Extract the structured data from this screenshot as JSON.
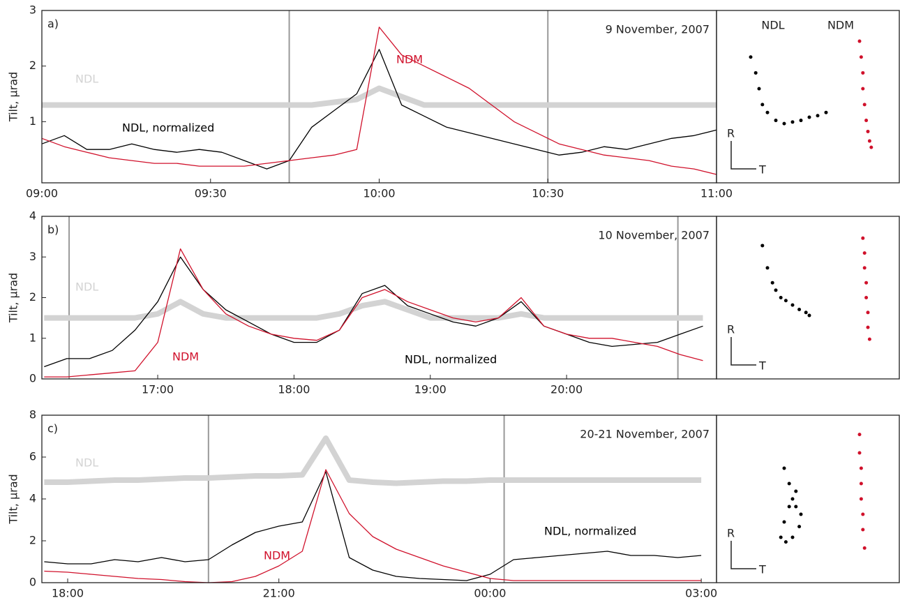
{
  "chart_data": [
    {
      "type": "line",
      "panel_label": "a)",
      "title": "9 November, 2007",
      "ylabel": "Tilt, µrad",
      "xlim": [
        540,
        660
      ],
      "ylim": [
        -0.1,
        3
      ],
      "yticks": [
        1,
        2,
        3
      ],
      "xticks": [
        {
          "value": 540,
          "label": "09:00"
        },
        {
          "value": 570,
          "label": "09:30"
        },
        {
          "value": 600,
          "label": "10:00"
        },
        {
          "value": 630,
          "label": "10:30"
        },
        {
          "value": 660,
          "label": "11:00"
        }
      ],
      "markers": [
        584,
        630
      ],
      "x": [
        540,
        544,
        548,
        552,
        556,
        560,
        564,
        568,
        572,
        576,
        580,
        584,
        588,
        592,
        596,
        600,
        604,
        608,
        612,
        616,
        620,
        624,
        628,
        632,
        636,
        640,
        644,
        648,
        652,
        656,
        660
      ],
      "series": [
        {
          "name": "NDL",
          "color": "#d3d3d3",
          "values": [
            1.3,
            1.3,
            1.3,
            1.3,
            1.3,
            1.3,
            1.3,
            1.3,
            1.3,
            1.3,
            1.3,
            1.3,
            1.3,
            1.35,
            1.4,
            1.6,
            1.45,
            1.3,
            1.3,
            1.3,
            1.3,
            1.3,
            1.3,
            1.3,
            1.3,
            1.3,
            1.3,
            1.3,
            1.3,
            1.3,
            1.3
          ]
        },
        {
          "name": "NDL, normalized",
          "color": "#000000",
          "values": [
            0.6,
            0.75,
            0.5,
            0.5,
            0.6,
            0.5,
            0.45,
            0.5,
            0.45,
            0.3,
            0.15,
            0.3,
            0.9,
            1.2,
            1.5,
            2.3,
            1.3,
            1.1,
            0.9,
            0.8,
            0.7,
            0.6,
            0.5,
            0.4,
            0.45,
            0.55,
            0.5,
            0.6,
            0.7,
            0.75,
            0.85
          ]
        },
        {
          "name": "NDM",
          "color": "#d0112b",
          "values": [
            0.7,
            0.55,
            0.45,
            0.35,
            0.3,
            0.25,
            0.25,
            0.2,
            0.2,
            0.2,
            0.25,
            0.3,
            0.35,
            0.4,
            0.5,
            2.7,
            2.2,
            2.0,
            1.8,
            1.6,
            1.3,
            1.0,
            0.8,
            0.6,
            0.5,
            0.4,
            0.35,
            0.3,
            0.2,
            0.15,
            0.05
          ]
        }
      ]
    },
    {
      "type": "scatter",
      "xlabel": "T",
      "ylabel": "R",
      "xlim": [
        0,
        100
      ],
      "ylim": [
        0,
        100
      ],
      "series": [
        {
          "name": "NDL",
          "color": "#000000",
          "x": [
            15,
            18,
            20,
            22,
            25,
            30,
            35,
            40,
            45,
            50,
            55,
            60
          ],
          "values": [
            75,
            65,
            55,
            45,
            40,
            35,
            33,
            34,
            35,
            37,
            38,
            40
          ]
        },
        {
          "name": "NDM",
          "color": "#d0112b",
          "x": [
            80,
            81,
            82,
            82,
            83,
            84,
            85,
            86,
            87
          ],
          "values": [
            85,
            75,
            65,
            55,
            45,
            35,
            28,
            22,
            18
          ]
        }
      ]
    },
    {
      "type": "line",
      "panel_label": "b)",
      "title": "10 November, 2007",
      "ylabel": "Tilt, µrad",
      "xlim": [
        969,
        1266
      ],
      "ylim": [
        0,
        4
      ],
      "yticks": [
        0,
        1,
        2,
        3,
        4
      ],
      "xticks": [
        {
          "value": 1020,
          "label": "17:00"
        },
        {
          "value": 1080,
          "label": "18:00"
        },
        {
          "value": 1140,
          "label": "19:00"
        },
        {
          "value": 1200,
          "label": "20:00"
        }
      ],
      "markers": [
        981,
        1249
      ],
      "x": [
        970,
        980,
        990,
        1000,
        1010,
        1020,
        1030,
        1040,
        1050,
        1060,
        1070,
        1080,
        1090,
        1100,
        1110,
        1120,
        1130,
        1140,
        1150,
        1160,
        1170,
        1180,
        1190,
        1200,
        1210,
        1220,
        1230,
        1240,
        1250,
        1260
      ],
      "series": [
        {
          "name": "NDL",
          "color": "#d3d3d3",
          "values": [
            1.5,
            1.5,
            1.5,
            1.5,
            1.5,
            1.6,
            1.9,
            1.6,
            1.5,
            1.5,
            1.5,
            1.5,
            1.5,
            1.6,
            1.8,
            1.9,
            1.7,
            1.5,
            1.5,
            1.5,
            1.5,
            1.6,
            1.5,
            1.5,
            1.5,
            1.5,
            1.5,
            1.5,
            1.5,
            1.5
          ]
        },
        {
          "name": "NDL, normalized",
          "color": "#000000",
          "values": [
            0.3,
            0.5,
            0.5,
            0.7,
            1.2,
            1.9,
            3.0,
            2.2,
            1.7,
            1.4,
            1.1,
            0.9,
            0.9,
            1.2,
            2.1,
            2.3,
            1.8,
            1.6,
            1.4,
            1.3,
            1.5,
            1.9,
            1.3,
            1.1,
            0.9,
            0.8,
            0.85,
            0.9,
            1.1,
            1.3
          ]
        },
        {
          "name": "NDM",
          "color": "#d0112b",
          "values": [
            0.05,
            0.05,
            0.1,
            0.15,
            0.2,
            0.9,
            3.2,
            2.2,
            1.6,
            1.3,
            1.1,
            1.0,
            0.95,
            1.2,
            2.0,
            2.2,
            1.9,
            1.7,
            1.5,
            1.4,
            1.5,
            2.0,
            1.3,
            1.1,
            1.0,
            1.0,
            0.9,
            0.8,
            0.6,
            0.45
          ]
        }
      ]
    },
    {
      "type": "scatter",
      "xlabel": "T",
      "ylabel": "R",
      "xlim": [
        0,
        100
      ],
      "ylim": [
        0,
        100
      ],
      "series": [
        {
          "color": "#000000",
          "x": [
            22,
            25,
            28,
            30,
            33,
            36,
            40,
            44,
            48,
            50
          ],
          "values": [
            85,
            70,
            60,
            55,
            50,
            48,
            45,
            42,
            40,
            38
          ]
        },
        {
          "color": "#d0112b",
          "x": [
            82,
            83,
            83,
            84,
            84,
            85,
            85,
            86
          ],
          "values": [
            90,
            80,
            70,
            60,
            50,
            40,
            30,
            22
          ]
        }
      ]
    },
    {
      "type": "line",
      "panel_label": "c)",
      "title": "20-21 November, 2007",
      "ylabel": "Tilt, µrad",
      "xlim": [
        1058,
        1633
      ],
      "ylim": [
        0,
        8
      ],
      "yticks": [
        0,
        2,
        4,
        6,
        8
      ],
      "xticks": [
        {
          "value": 1080,
          "label": "18:00"
        },
        {
          "value": 1260,
          "label": "21:00"
        },
        {
          "value": 1440,
          "label": "00:00"
        },
        {
          "value": 1620,
          "label": "03:00"
        }
      ],
      "markers": [
        1200,
        1452
      ],
      "x": [
        1060,
        1080,
        1100,
        1120,
        1140,
        1160,
        1180,
        1200,
        1220,
        1240,
        1260,
        1280,
        1300,
        1320,
        1340,
        1360,
        1380,
        1400,
        1420,
        1440,
        1460,
        1480,
        1500,
        1520,
        1540,
        1560,
        1580,
        1600,
        1620
      ],
      "series": [
        {
          "name": "NDL",
          "color": "#d3d3d3",
          "values": [
            4.8,
            4.8,
            4.85,
            4.9,
            4.9,
            4.95,
            5.0,
            5.0,
            5.05,
            5.1,
            5.1,
            5.15,
            6.9,
            4.9,
            4.8,
            4.75,
            4.8,
            4.85,
            4.85,
            4.9,
            4.9,
            4.9,
            4.9,
            4.9,
            4.9,
            4.9,
            4.9,
            4.9,
            4.9
          ]
        },
        {
          "name": "NDL, normalized",
          "color": "#000000",
          "values": [
            1.0,
            0.9,
            0.9,
            1.1,
            1.0,
            1.2,
            1.0,
            1.1,
            1.8,
            2.4,
            2.7,
            2.9,
            5.3,
            1.2,
            0.6,
            0.3,
            0.2,
            0.15,
            0.1,
            0.4,
            1.1,
            1.2,
            1.3,
            1.4,
            1.5,
            1.3,
            1.3,
            1.2,
            1.3
          ]
        },
        {
          "name": "NDM",
          "color": "#d0112b",
          "values": [
            0.55,
            0.5,
            0.4,
            0.3,
            0.2,
            0.15,
            0.05,
            0.0,
            0.05,
            0.3,
            0.8,
            1.5,
            5.4,
            3.3,
            2.2,
            1.6,
            1.2,
            0.8,
            0.5,
            0.2,
            0.1,
            0.1,
            0.1,
            0.1,
            0.1,
            0.1,
            0.1,
            0.1,
            0.1
          ]
        }
      ]
    },
    {
      "type": "scatter",
      "xlabel": "T",
      "ylabel": "R",
      "xlim": [
        0,
        100
      ],
      "ylim": [
        0,
        100
      ],
      "series": [
        {
          "color": "#000000",
          "x": [
            35,
            38,
            40,
            42,
            45,
            44,
            40,
            36,
            33,
            35,
            38,
            42
          ],
          "values": [
            70,
            60,
            50,
            45,
            40,
            32,
            25,
            22,
            25,
            35,
            45,
            55
          ]
        },
        {
          "color": "#d0112b",
          "x": [
            80,
            80,
            81,
            81,
            81,
            82,
            82,
            83
          ],
          "values": [
            92,
            80,
            70,
            60,
            50,
            40,
            30,
            18
          ]
        }
      ]
    }
  ]
}
